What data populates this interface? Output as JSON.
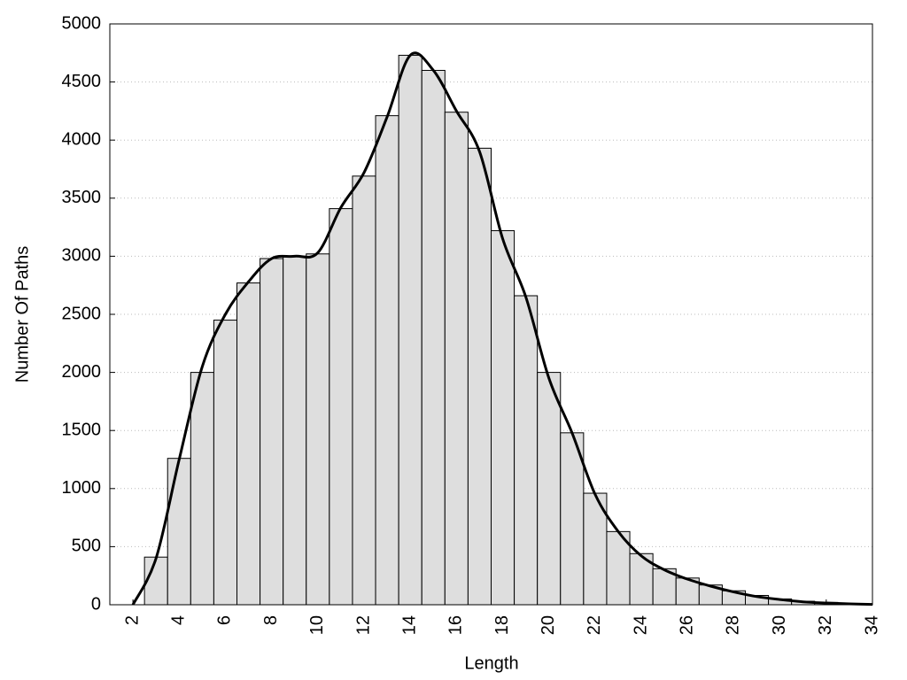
{
  "chart_data": {
    "type": "histogram",
    "xlabel": "Length",
    "ylabel": "Number Of Paths",
    "bins": [
      2.5,
      3.5,
      4.5,
      5.5,
      6.5,
      7.5,
      8.5,
      9.5,
      10.5,
      11.5,
      12.5,
      13.5,
      14.5,
      15.5,
      16.5,
      17.5,
      18.5,
      19.5,
      20.5,
      21.5,
      22.5,
      23.5,
      24.5,
      25.5,
      26.5,
      27.5,
      28.5,
      29.5,
      30.5,
      31.5,
      32.5,
      33.5
    ],
    "values": [
      410,
      1260,
      2000,
      2450,
      2770,
      2980,
      3000,
      3020,
      3410,
      3690,
      4210,
      4730,
      4600,
      4240,
      3930,
      3220,
      2660,
      2000,
      1480,
      960,
      630,
      440,
      310,
      230,
      170,
      120,
      80,
      50,
      30,
      20,
      10
    ],
    "color": "#dedede",
    "overlay": {
      "type": "line",
      "color": "#000000",
      "x": [
        2,
        3,
        4,
        5,
        6,
        7,
        8,
        9,
        10,
        11,
        12,
        13,
        14,
        15,
        16,
        17,
        18,
        19,
        20,
        21,
        22,
        23,
        24,
        25,
        26,
        27,
        28,
        29,
        30,
        31,
        32,
        33,
        34
      ],
      "values": [
        0,
        400,
        1250,
        2050,
        2500,
        2780,
        2980,
        3000,
        3030,
        3420,
        3720,
        4200,
        4730,
        4600,
        4250,
        3900,
        3150,
        2650,
        1950,
        1480,
        950,
        630,
        420,
        300,
        220,
        160,
        110,
        70,
        45,
        25,
        15,
        8,
        3
      ]
    },
    "xlim": [
      1,
      34
    ],
    "ylim": [
      0,
      5000
    ],
    "xticks": [
      2,
      4,
      6,
      8,
      10,
      12,
      14,
      16,
      18,
      20,
      22,
      24,
      26,
      28,
      30,
      32,
      34
    ],
    "yticks": [
      0,
      500,
      1000,
      1500,
      2000,
      2500,
      3000,
      3500,
      4000,
      4500,
      5000
    ],
    "grid": true
  }
}
